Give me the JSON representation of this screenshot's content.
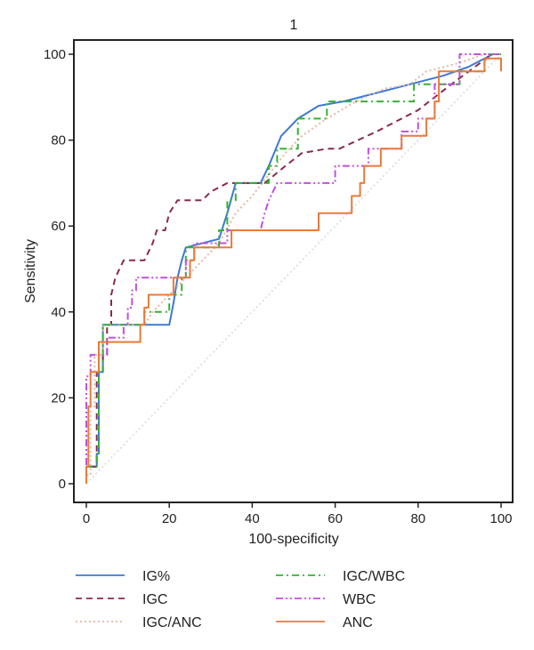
{
  "chart_data": {
    "type": "line",
    "title": "1",
    "xlabel": "100-specificity",
    "ylabel": "Sensitivity",
    "xlim": [
      0,
      100
    ],
    "ylim": [
      0,
      100
    ],
    "xticks": [
      0,
      20,
      40,
      60,
      80,
      100
    ],
    "yticks": [
      0,
      20,
      40,
      60,
      80,
      100
    ],
    "grid": false,
    "legend_position": "bottom",
    "colors": {
      "IG%": "#3f78d4",
      "IGC": "#8b2a4e",
      "IGC/ANC": "#e7b7a3",
      "IGC/WBC": "#33b333",
      "WBC": "#c24fe0",
      "ANC": "#ea7a3a",
      "reference": "#dddddd",
      "axis": "#222222"
    },
    "series": [
      {
        "name": "IG%",
        "style": "solid",
        "points": [
          [
            0,
            0
          ],
          [
            0,
            4
          ],
          [
            2.5,
            4
          ],
          [
            2.5,
            7
          ],
          [
            3,
            7
          ],
          [
            3,
            26
          ],
          [
            4,
            26
          ],
          [
            4,
            37
          ],
          [
            20,
            37
          ],
          [
            21,
            42
          ],
          [
            22,
            48
          ],
          [
            23,
            52
          ],
          [
            24,
            55
          ],
          [
            32,
            57
          ],
          [
            34,
            63
          ],
          [
            36,
            70
          ],
          [
            42,
            70
          ],
          [
            44,
            74
          ],
          [
            47,
            81
          ],
          [
            51,
            85
          ],
          [
            56,
            88
          ],
          [
            62,
            89
          ],
          [
            70,
            91
          ],
          [
            78,
            93
          ],
          [
            86,
            95
          ],
          [
            92,
            97
          ],
          [
            98,
            100
          ],
          [
            100,
            100
          ]
        ]
      },
      {
        "name": "IGC",
        "style": "dashed",
        "points": [
          [
            0,
            0
          ],
          [
            0,
            4
          ],
          [
            2.5,
            4
          ],
          [
            2.5,
            26
          ],
          [
            4,
            26
          ],
          [
            4,
            30
          ],
          [
            5,
            30
          ],
          [
            5,
            37
          ],
          [
            6,
            37
          ],
          [
            6,
            44
          ],
          [
            7,
            48
          ],
          [
            9,
            52
          ],
          [
            14,
            52
          ],
          [
            16,
            56
          ],
          [
            17,
            59
          ],
          [
            19,
            59
          ],
          [
            20,
            63
          ],
          [
            22,
            66
          ],
          [
            28,
            66
          ],
          [
            30,
            68
          ],
          [
            34,
            70
          ],
          [
            43,
            70
          ],
          [
            48,
            74
          ],
          [
            52,
            77
          ],
          [
            58,
            78
          ],
          [
            61,
            78
          ],
          [
            70,
            82
          ],
          [
            80,
            87
          ],
          [
            88,
            93
          ],
          [
            95,
            98
          ],
          [
            98,
            100
          ],
          [
            100,
            100
          ]
        ]
      },
      {
        "name": "IGC/ANC",
        "style": "dotted",
        "points": [
          [
            0,
            0
          ],
          [
            0,
            2
          ],
          [
            1,
            2
          ],
          [
            1,
            18
          ],
          [
            2,
            18
          ],
          [
            2,
            30
          ],
          [
            4,
            30
          ],
          [
            4,
            37
          ],
          [
            14,
            37
          ],
          [
            16,
            40
          ],
          [
            20,
            44
          ],
          [
            24,
            48
          ],
          [
            28,
            52
          ],
          [
            32,
            56
          ],
          [
            36,
            63
          ],
          [
            40,
            67
          ],
          [
            44,
            72
          ],
          [
            48,
            77
          ],
          [
            52,
            81
          ],
          [
            58,
            85
          ],
          [
            65,
            89
          ],
          [
            72,
            92
          ],
          [
            78,
            93
          ],
          [
            82,
            96
          ],
          [
            90,
            98
          ],
          [
            96,
            100
          ],
          [
            100,
            100
          ]
        ]
      },
      {
        "name": "IGC/WBC",
        "style": "dashdot",
        "points": [
          [
            0,
            0
          ],
          [
            0,
            4
          ],
          [
            2.5,
            4
          ],
          [
            2.5,
            7
          ],
          [
            3,
            7
          ],
          [
            3,
            26
          ],
          [
            4,
            26
          ],
          [
            4,
            37
          ],
          [
            14,
            37
          ],
          [
            14,
            40
          ],
          [
            20,
            40
          ],
          [
            20,
            44
          ],
          [
            23,
            44
          ],
          [
            23,
            48
          ],
          [
            24,
            48
          ],
          [
            24,
            55
          ],
          [
            32,
            55
          ],
          [
            32,
            59
          ],
          [
            34,
            59
          ],
          [
            34,
            66
          ],
          [
            36,
            66
          ],
          [
            36,
            70
          ],
          [
            44,
            70
          ],
          [
            44,
            74
          ],
          [
            46,
            74
          ],
          [
            46,
            78
          ],
          [
            51,
            78
          ],
          [
            51,
            85
          ],
          [
            58,
            85
          ],
          [
            58,
            89
          ],
          [
            79,
            89
          ],
          [
            79,
            93
          ],
          [
            90,
            93
          ],
          [
            90,
            96
          ],
          [
            96,
            96
          ],
          [
            96,
            100
          ],
          [
            100,
            100
          ]
        ]
      },
      {
        "name": "WBC",
        "style": "dashdotdot",
        "points": [
          [
            0,
            0
          ],
          [
            0,
            20
          ],
          [
            0,
            25
          ],
          [
            1,
            25
          ],
          [
            1,
            30
          ],
          [
            5,
            30
          ],
          [
            5,
            34
          ],
          [
            9,
            34
          ],
          [
            9,
            37
          ],
          [
            10,
            37
          ],
          [
            10,
            41
          ],
          [
            11,
            41
          ],
          [
            11,
            45
          ],
          [
            12,
            45
          ],
          [
            12,
            48
          ],
          [
            24,
            48
          ],
          [
            24,
            52
          ],
          [
            26,
            52
          ],
          [
            26,
            56
          ],
          [
            34,
            56
          ],
          [
            34,
            59
          ],
          [
            42,
            59
          ],
          [
            43,
            63
          ],
          [
            44,
            66
          ],
          [
            46,
            70
          ],
          [
            60,
            70
          ],
          [
            60,
            74
          ],
          [
            68,
            74
          ],
          [
            68,
            78
          ],
          [
            76,
            78
          ],
          [
            76,
            82
          ],
          [
            80,
            82
          ],
          [
            80,
            85
          ],
          [
            84,
            85
          ],
          [
            84,
            93
          ],
          [
            90,
            93
          ],
          [
            90,
            100
          ],
          [
            100,
            100
          ]
        ]
      },
      {
        "name": "ANC",
        "style": "solid",
        "points": [
          [
            0,
            0
          ],
          [
            0,
            4
          ],
          [
            0.5,
            4
          ],
          [
            0.5,
            18
          ],
          [
            1,
            18
          ],
          [
            1,
            26
          ],
          [
            3,
            26
          ],
          [
            3,
            33
          ],
          [
            13,
            33
          ],
          [
            13,
            37
          ],
          [
            14,
            37
          ],
          [
            14,
            41
          ],
          [
            15,
            41
          ],
          [
            15,
            44
          ],
          [
            21,
            44
          ],
          [
            21,
            48
          ],
          [
            25,
            48
          ],
          [
            25,
            52
          ],
          [
            26,
            52
          ],
          [
            26,
            55
          ],
          [
            35,
            55
          ],
          [
            35,
            59
          ],
          [
            56,
            59
          ],
          [
            56,
            63
          ],
          [
            64,
            63
          ],
          [
            64,
            67
          ],
          [
            66,
            67
          ],
          [
            66,
            70
          ],
          [
            67,
            70
          ],
          [
            67,
            74
          ],
          [
            71,
            74
          ],
          [
            71,
            78
          ],
          [
            76,
            78
          ],
          [
            76,
            81
          ],
          [
            82,
            81
          ],
          [
            82,
            85
          ],
          [
            84,
            85
          ],
          [
            84,
            89
          ],
          [
            85,
            89
          ],
          [
            85,
            96
          ],
          [
            96,
            96
          ],
          [
            96,
            99
          ],
          [
            100,
            99
          ],
          [
            100,
            96
          ]
        ]
      }
    ]
  }
}
